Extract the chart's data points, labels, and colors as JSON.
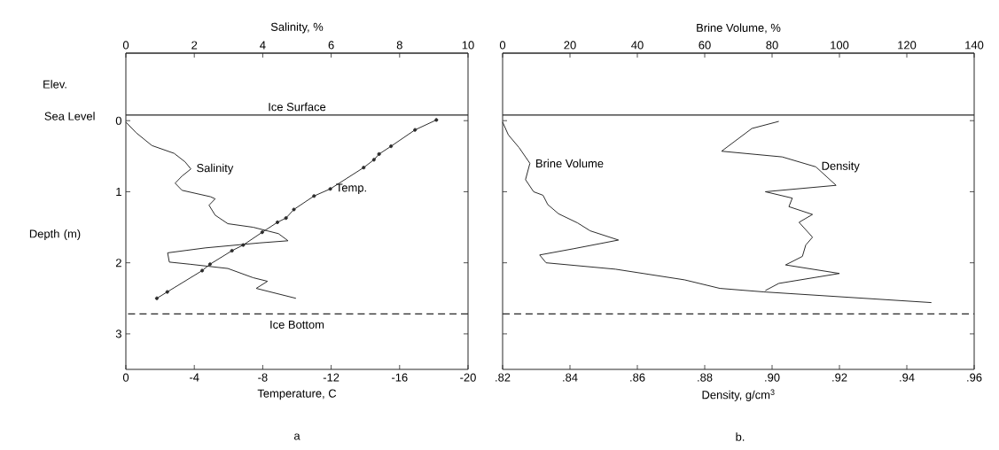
{
  "chart_data": [
    {
      "type": "line",
      "xlabel": "Temperature, C",
      "x2label": "Salinity, %",
      "ylabel": "Depth (m)",
      "xlim": [
        0,
        -20
      ],
      "xticks": [
        0,
        -4,
        -8,
        -12,
        -16,
        -20
      ],
      "x2lim": [
        0,
        10
      ],
      "x2ticks": [
        0,
        2,
        4,
        6,
        8,
        10
      ],
      "ylim": [
        3.5,
        -0.95
      ],
      "yticks": [
        0,
        1,
        2,
        3
      ],
      "ref_lines": [
        {
          "axis": "y",
          "value": -0.08,
          "label": "Ice Surface",
          "line_style": "solid"
        },
        {
          "axis": "y",
          "value": 2.72,
          "label": "Ice Bottom",
          "line_style": "dashed"
        }
      ],
      "annotations": [
        "Elev.",
        "Sea Level",
        "a"
      ],
      "series": [
        {
          "name": "Salinity",
          "axis": "x2",
          "color": "#2b2b2b",
          "marker": "none",
          "x": [
            0,
            0.3,
            0.76,
            1.41,
            1.73,
            1.9,
            1.64,
            1.44,
            1.64,
            2.47,
            2.61,
            2.43,
            2.61,
            2.98,
            3.72,
            4.46,
            4.74,
            3.91,
            2.33,
            1.22,
            1.27,
            1.87,
            2.98,
            3.72,
            4.14,
            3.81,
            4.97
          ],
          "values": [
            0.02,
            0.17,
            0.35,
            0.46,
            0.58,
            0.68,
            0.78,
            0.88,
            0.98,
            1.07,
            1.1,
            1.19,
            1.33,
            1.45,
            1.5,
            1.59,
            1.69,
            1.72,
            1.79,
            1.86,
            1.99,
            2.02,
            2.08,
            2.21,
            2.26,
            2.36,
            2.5
          ]
        },
        {
          "name": "Temp.",
          "color": "#2b2b2b",
          "marker": "circle",
          "x": [
            -18.15,
            -16.9,
            -15.5,
            -14.8,
            -14.5,
            -13.9,
            -11.95,
            -11.0,
            -9.82,
            -9.36,
            -8.86,
            -7.97,
            -6.86,
            -6.2,
            -4.92,
            -4.46,
            -2.42,
            -1.81
          ],
          "values": [
            -0.01,
            0.13,
            0.36,
            0.47,
            0.55,
            0.66,
            0.96,
            1.06,
            1.25,
            1.37,
            1.43,
            1.57,
            1.75,
            1.83,
            2.02,
            2.11,
            2.41,
            2.5
          ]
        }
      ]
    },
    {
      "type": "line",
      "xlabel": "Density, g/cm$^{3}$",
      "x2label": "Brine Volume, %",
      "xlim": [
        0.82,
        0.96
      ],
      "xticks": [
        {
          "value": 0.82,
          "label": ".82"
        },
        {
          "value": 0.84,
          "label": ".84"
        },
        {
          "value": 0.86,
          "label": ".86"
        },
        {
          "value": 0.88,
          "label": ".88"
        },
        {
          "value": 0.9,
          "label": ".90"
        },
        {
          "value": 0.92,
          "label": ".92"
        },
        {
          "value": 0.94,
          "label": ".94"
        },
        {
          "value": 0.96,
          "label": ".96"
        }
      ],
      "x2lim": [
        0,
        140
      ],
      "x2ticks": [
        0,
        20,
        40,
        60,
        80,
        100,
        120,
        140
      ],
      "ylim": [
        3.5,
        -0.95
      ],
      "yticks": [
        {
          "value": 0,
          "label": null
        },
        {
          "value": 1,
          "label": null
        },
        {
          "value": 2,
          "label": null
        },
        {
          "value": 3,
          "label": null
        }
      ],
      "tick_labels": "x",
      "ref_lines": [
        {
          "axis": "y",
          "value": -0.08,
          "line_style": "solid"
        },
        {
          "axis": "y",
          "value": 2.72,
          "line_style": "dashed"
        }
      ],
      "annotations": [
        "b."
      ],
      "series": [
        {
          "name": "Brine Volume",
          "axis": "x2",
          "color": "#2b2b2b",
          "marker": "none",
          "x": [
            0,
            1.7,
            4.9,
            8.1,
            6.8,
            9.2,
            12,
            13.4,
            16.6,
            22.3,
            26,
            34.4,
            21.3,
            11,
            12.9,
            33.5,
            54,
            64.5,
            77.6,
            127.3
          ],
          "values": [
            0.02,
            0.2,
            0.38,
            0.6,
            0.83,
            1.0,
            1.05,
            1.18,
            1.31,
            1.44,
            1.55,
            1.68,
            1.8,
            1.89,
            2.0,
            2.09,
            2.24,
            2.36,
            2.41,
            2.56
          ]
        },
        {
          "name": "Density",
          "color": "#2b2b2b",
          "marker": "none",
          "x": [
            0.902,
            0.894,
            0.885,
            0.903,
            0.913,
            0.919,
            0.898,
            0.906,
            0.905,
            0.912,
            0.908,
            0.912,
            0.91,
            0.909,
            0.904,
            0.92,
            0.902,
            0.898
          ],
          "values": [
            0.01,
            0.11,
            0.43,
            0.51,
            0.65,
            0.91,
            1.0,
            1.09,
            1.21,
            1.32,
            1.43,
            1.64,
            1.75,
            1.91,
            2.03,
            2.15,
            2.29,
            2.39
          ]
        }
      ]
    }
  ]
}
